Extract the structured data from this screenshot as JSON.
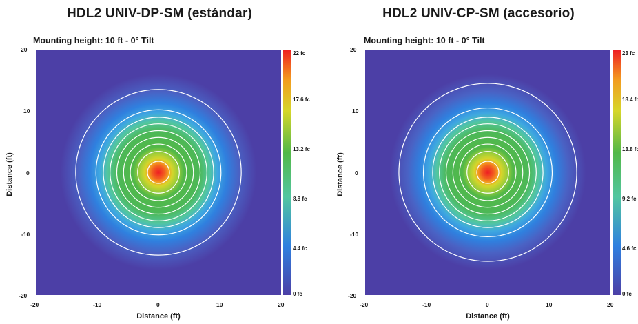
{
  "charts": [
    {
      "title": "HDL2 UNIV-DP-SM (estándar)",
      "subtitle": "Mounting height: 10 ft - 0° Tilt",
      "xlabel": "Distance (ft)",
      "ylabel": "Distance (ft)",
      "x_ticks": [
        "-20",
        "-10",
        "0",
        "10",
        "20"
      ],
      "y_ticks": [
        "20",
        "10",
        "0",
        "-10",
        "-20"
      ],
      "colorbar_labels": [
        "22 fc",
        "17.6 fc",
        "13.2 fc",
        "8.8 fc",
        "4.4 fc",
        "0 fc"
      ]
    },
    {
      "title": "HDL2 UNIV-CP-SM (accesorio)",
      "subtitle": "Mounting height: 10 ft - 0° Tilt",
      "xlabel": "Distance (ft)",
      "ylabel": "Distance (ft)",
      "x_ticks": [
        "-20",
        "-10",
        "0",
        "10",
        "20"
      ],
      "y_ticks": [
        "20",
        "10",
        "0",
        "-10",
        "-20"
      ],
      "colorbar_labels": [
        "23 fc",
        "18.4 fc",
        "13.8 fc",
        "9.2 fc",
        "4.6 fc",
        "0 fc"
      ]
    }
  ],
  "chart_data": [
    {
      "type": "heatmap",
      "title": "HDL2 UNIV-DP-SM (estándar)",
      "subtitle": "Mounting height: 10 ft - 0° Tilt",
      "xlabel": "Distance (ft)",
      "ylabel": "Distance (ft)",
      "xlim": [
        -20,
        20
      ],
      "ylim": [
        -20,
        20
      ],
      "colorbar_range_fc": [
        0,
        22
      ],
      "colorbar_ticks_fc": [
        0,
        4.4,
        8.8,
        13.2,
        17.6,
        22
      ],
      "center": [
        0,
        0
      ],
      "contour_radii_ft": [
        1.8,
        3.4,
        4.6,
        5.7,
        6.8,
        7.9,
        9.0,
        10.2,
        13.5
      ],
      "colors": {
        "low": "#4c3fa6",
        "high": "#ee1d23",
        "contour": "#ffffff"
      }
    },
    {
      "type": "heatmap",
      "title": "HDL2 UNIV-CP-SM (accesorio)",
      "subtitle": "Mounting height: 10 ft - 0° Tilt",
      "xlabel": "Distance (ft)",
      "ylabel": "Distance (ft)",
      "xlim": [
        -20,
        20
      ],
      "ylim": [
        -20,
        20
      ],
      "colorbar_range_fc": [
        0,
        23
      ],
      "colorbar_ticks_fc": [
        0,
        4.6,
        9.2,
        13.8,
        18.4,
        23
      ],
      "center": [
        0,
        0
      ],
      "contour_radii_ft": [
        1.8,
        3.4,
        4.6,
        5.7,
        6.8,
        7.9,
        9.0,
        10.5,
        14.5
      ],
      "colors": {
        "low": "#4c3fa6",
        "high": "#ee1d23",
        "contour": "#ffffff"
      }
    }
  ]
}
